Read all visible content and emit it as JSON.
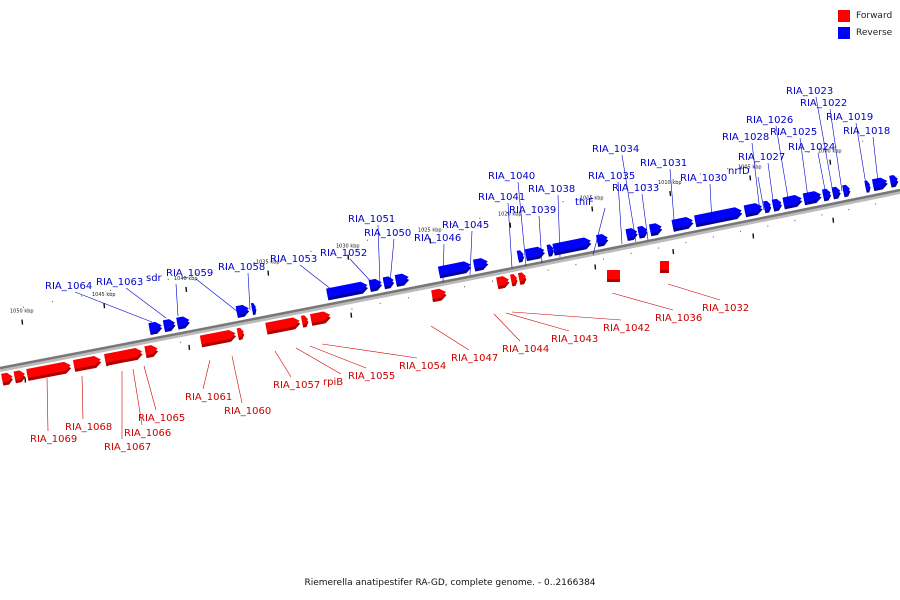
{
  "legend": {
    "items": [
      {
        "label": "Forward",
        "color": "#ff0000"
      },
      {
        "label": "Reverse",
        "color": "#0000ff"
      }
    ]
  },
  "caption": "Riemerella anatipestifer RA-GD, complete genome. - 0..2166384",
  "colors": {
    "forward": "#ff0000",
    "forward_dark": "#b00000",
    "reverse": "#0000ff",
    "reverse_dark": "#0000a0",
    "label_forward": "#cc0000",
    "label_reverse": "#0000cc",
    "backbone": "#777777"
  },
  "scale_ticks": [
    "1050 kbp",
    "1045 kbp",
    "1040 kbp",
    "1035 kbp",
    "1030 kbp",
    "1025 kbp",
    "1020 kbp",
    "1015 kbp",
    "1010 kbp",
    "1005 kbp",
    "1000 kbp"
  ],
  "reverse_genes": [
    "RIA_1064",
    "RIA_1063",
    "sdr",
    "RIA_1059",
    "RIA_1058",
    "RIA_1053",
    "RIA_1052",
    "RIA_1051",
    "RIA_1050",
    "RIA_1046",
    "RIA_1045",
    "RIA_1041",
    "RIA_1040",
    "RIA_1039",
    "RIA_1038",
    "thiF",
    "RIA_1035",
    "RIA_1034",
    "RIA_1033",
    "RIA_1031",
    "RIA_1030",
    "RIA_1028",
    "nrfD",
    "RIA_1027",
    "RIA_1026",
    "RIA_1025",
    "RIA_1024",
    "RIA_1023",
    "RIA_1022",
    "RIA_1019",
    "RIA_1018"
  ],
  "forward_genes": [
    "RIA_1069",
    "RIA_1068",
    "RIA_1067",
    "RIA_1066",
    "RIA_1065",
    "RIA_1061",
    "RIA_1060",
    "RIA_1057",
    "rpiB",
    "RIA_1055",
    "RIA_1054",
    "RIA_1047",
    "RIA_1044",
    "RIA_1043",
    "RIA_1042",
    "RIA_1036",
    "RIA_1032"
  ]
}
